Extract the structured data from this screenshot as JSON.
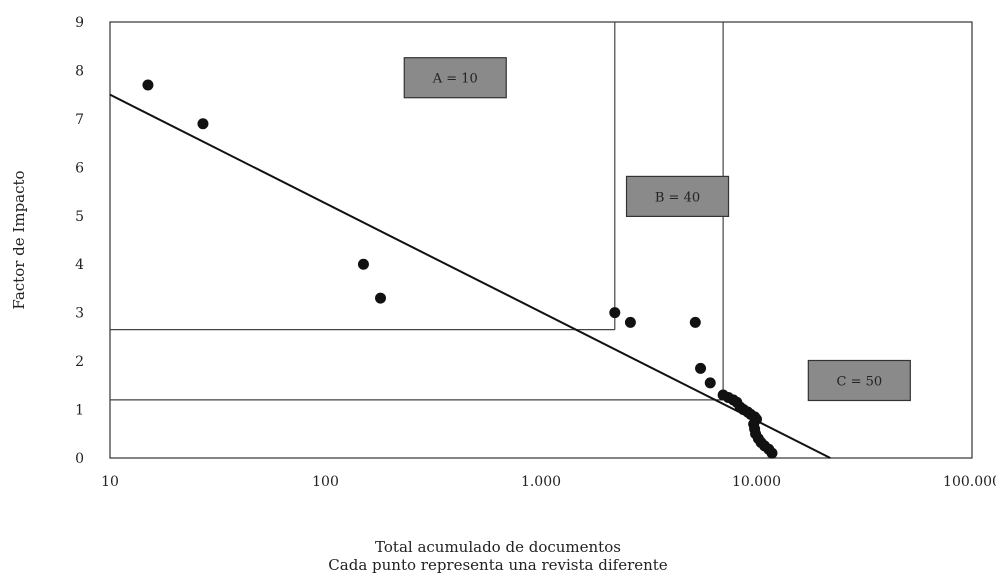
{
  "chart_data": {
    "type": "scatter",
    "title": "",
    "xlabel": "Total acumulado de documentos",
    "subtitle": "Cada punto representa una revista diferente",
    "ylabel": "Factor de Impacto",
    "x_scale": "log",
    "xlim": [
      10,
      100000
    ],
    "ylim": [
      0,
      9
    ],
    "x_ticks": [
      {
        "value": 10,
        "label": "10"
      },
      {
        "value": 100,
        "label": "100"
      },
      {
        "value": 1000,
        "label": "1.000"
      },
      {
        "value": 10000,
        "label": "10.000"
      },
      {
        "value": 100000,
        "label": "100.000"
      }
    ],
    "y_ticks": [
      {
        "value": 0,
        "label": "0"
      },
      {
        "value": 1,
        "label": "1"
      },
      {
        "value": 2,
        "label": "2"
      },
      {
        "value": 3,
        "label": "3"
      },
      {
        "value": 4,
        "label": "4"
      },
      {
        "value": 5,
        "label": "5"
      },
      {
        "value": 6,
        "label": "6"
      },
      {
        "value": 7,
        "label": "7"
      },
      {
        "value": 8,
        "label": "8"
      },
      {
        "value": 9,
        "label": "9"
      }
    ],
    "grid": false,
    "points": [
      {
        "x": 15,
        "y": 7.7
      },
      {
        "x": 27,
        "y": 6.9
      },
      {
        "x": 150,
        "y": 4.0
      },
      {
        "x": 180,
        "y": 3.3
      },
      {
        "x": 2200,
        "y": 3.0
      },
      {
        "x": 2600,
        "y": 2.8
      },
      {
        "x": 5200,
        "y": 2.8
      },
      {
        "x": 5500,
        "y": 1.85
      },
      {
        "x": 6100,
        "y": 1.55
      },
      {
        "x": 7000,
        "y": 1.3
      },
      {
        "x": 7400,
        "y": 1.25
      },
      {
        "x": 7800,
        "y": 1.2
      },
      {
        "x": 8100,
        "y": 1.15
      },
      {
        "x": 8400,
        "y": 1.05
      },
      {
        "x": 8700,
        "y": 1.0
      },
      {
        "x": 9100,
        "y": 0.95
      },
      {
        "x": 9400,
        "y": 0.9
      },
      {
        "x": 9800,
        "y": 0.85
      },
      {
        "x": 10000,
        "y": 0.8
      },
      {
        "x": 9700,
        "y": 0.7
      },
      {
        "x": 9800,
        "y": 0.6
      },
      {
        "x": 9900,
        "y": 0.5
      },
      {
        "x": 10200,
        "y": 0.4
      },
      {
        "x": 10500,
        "y": 0.32
      },
      {
        "x": 10900,
        "y": 0.25
      },
      {
        "x": 11400,
        "y": 0.18
      },
      {
        "x": 11800,
        "y": 0.1
      }
    ],
    "trend_line": {
      "x": [
        10,
        22000
      ],
      "y": [
        7.5,
        0
      ]
    },
    "reference_lines": [
      {
        "type": "vertical",
        "x": 2200,
        "y_from": 2.65,
        "y_to": 9
      },
      {
        "type": "horizontal",
        "y": 2.65,
        "x_from": 10,
        "x_to": 2200
      },
      {
        "type": "vertical",
        "x": 7000,
        "y_from": 1.2,
        "y_to": 9
      },
      {
        "type": "horizontal",
        "y": 1.2,
        "x_from": 10,
        "x_to": 7000
      }
    ],
    "annotations": [
      {
        "text": "A = 10",
        "x": 400,
        "y": 7.85
      },
      {
        "text": "B = 40",
        "x": 4300,
        "y": 5.4
      },
      {
        "text": "C = 50",
        "x": 30000,
        "y": 1.6
      }
    ]
  }
}
